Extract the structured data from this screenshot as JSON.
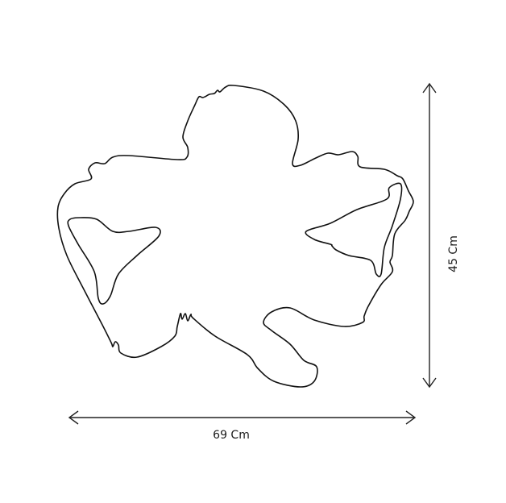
{
  "dimensions": {
    "width_label": "69 Cm",
    "height_label": "45 Cm"
  },
  "colors": {
    "line": "#111111",
    "background": "#ffffff"
  }
}
